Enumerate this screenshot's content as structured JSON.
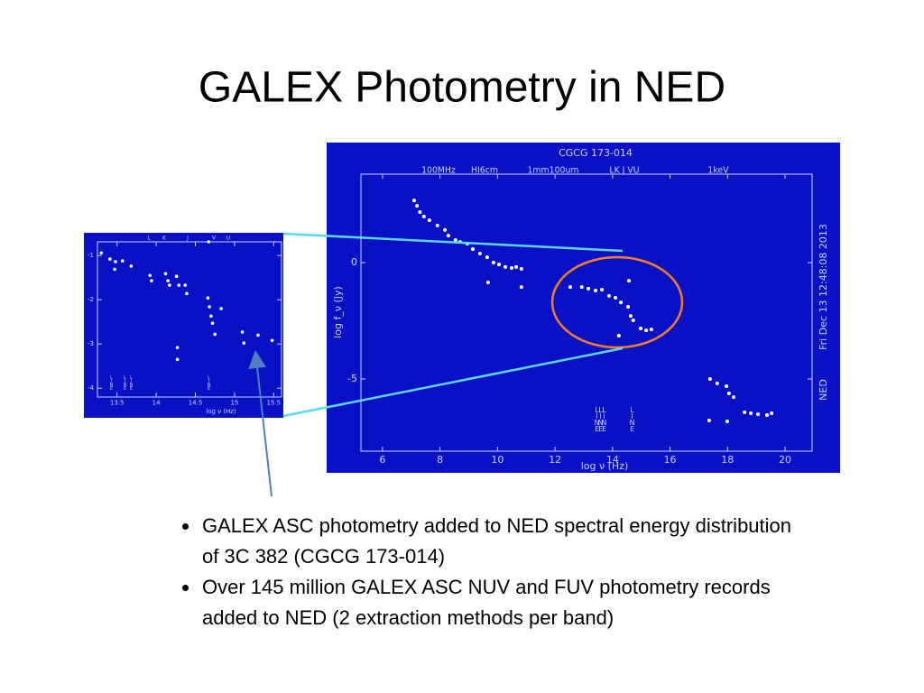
{
  "title": "GALEX Photometry in NED",
  "bullets": [
    "GALEX ASC photometry added to NED spectral energy distribution of 3C 382 (CGCG 173-014)",
    "Over 145 million GALEX ASC NUV and FUV photometry records added to NED  (2 extraction methods per band)"
  ],
  "main_plot": {
    "title": "CGCG 173-014",
    "top_labels": [
      "100MHz",
      "HI6cm",
      "1mm100um",
      "LK J VU",
      "1keV"
    ],
    "x_label": "log ν (Hz)",
    "y_label": "log f_ν (Jy)",
    "side_label": "Fri Dec 13 12:48:08 2013",
    "ned_label": "NED",
    "band_labels": [
      "LINE",
      "LINE",
      "LINE",
      "LINE"
    ],
    "xlim": [
      5.25,
      20.94
    ],
    "ylim": [
      -8.1,
      3.8
    ],
    "xticks": [
      6,
      8,
      10,
      12,
      14,
      16,
      18,
      20
    ],
    "yticks": [
      0,
      -5
    ],
    "points": {
      "x": [
        7.1,
        7.2,
        7.3,
        7.44,
        7.63,
        7.91,
        8.17,
        8.29,
        8.54,
        8.7,
        8.95,
        9.14,
        9.39,
        9.64,
        9.86,
        10.05,
        10.27,
        10.49,
        10.65,
        10.83,
        9.67,
        10.83,
        12.53,
        12.93,
        13.16,
        13.41,
        13.63,
        13.88,
        14.1,
        14.29,
        14.54,
        14.63,
        14.72,
        14.57,
        14.22,
        14.98,
        15.17,
        15.35,
        17.39,
        17.64,
        17.96,
        18.05,
        18.21,
        17.36,
        17.99,
        18.59,
        18.81,
        19.06,
        19.37,
        19.53
      ],
      "y": [
        2.67,
        2.44,
        2.17,
        1.98,
        1.82,
        1.59,
        1.4,
        1.16,
        0.97,
        0.89,
        0.81,
        0.58,
        0.39,
        0.23,
        0,
        -0.08,
        -0.19,
        -0.23,
        -0.19,
        -0.27,
        -0.85,
        -1.05,
        -1.05,
        -1.05,
        -1.12,
        -1.2,
        -1.16,
        -1.43,
        -1.51,
        -1.71,
        -1.9,
        -2.29,
        -2.48,
        -0.78,
        -3.14,
        -2.83,
        -2.91,
        -2.87,
        -5,
        -5.19,
        -5.31,
        -5.62,
        -5.78,
        -6.78,
        -6.82,
        -6.43,
        -6.47,
        -6.51,
        -6.55,
        -6.47
      ]
    }
  },
  "inset_plot": {
    "top_labels": [
      "L",
      "K",
      "J",
      "V",
      "U"
    ],
    "x_label": "log ν (Hz)",
    "band_labels": [
      "LINE",
      "LINE",
      "LINE",
      "LINE"
    ],
    "xlim": [
      13.25,
      15.6
    ],
    "ylim": [
      -4.2,
      -0.69
    ],
    "xticks": [
      13.5,
      14,
      14.5,
      15,
      15.5
    ],
    "yticks": [
      -1,
      -2,
      -3,
      -4
    ],
    "points": {
      "x": [
        13.3,
        13.41,
        13.48,
        13.47,
        13.57,
        13.68,
        13.92,
        13.94,
        14.12,
        14.15,
        14.17,
        14.26,
        14.29,
        14.37,
        14.39,
        14.66,
        14.68,
        14.7,
        14.72,
        14.83,
        14.75,
        14.27,
        14.27,
        15.1,
        15.12,
        15.3,
        15.48,
        14.67
      ],
      "y": [
        -0.94,
        -1.08,
        -1.14,
        -1.31,
        -1.12,
        -1.24,
        -1.45,
        -1.57,
        -1.41,
        -1.57,
        -1.67,
        -1.47,
        -1.67,
        -1.67,
        -1.86,
        -1.96,
        -2.16,
        -2.37,
        -2.53,
        -2.2,
        -2.78,
        -3.08,
        -3.35,
        -2.73,
        -2.98,
        -2.8,
        -2.92,
        -0.69
      ]
    }
  }
}
